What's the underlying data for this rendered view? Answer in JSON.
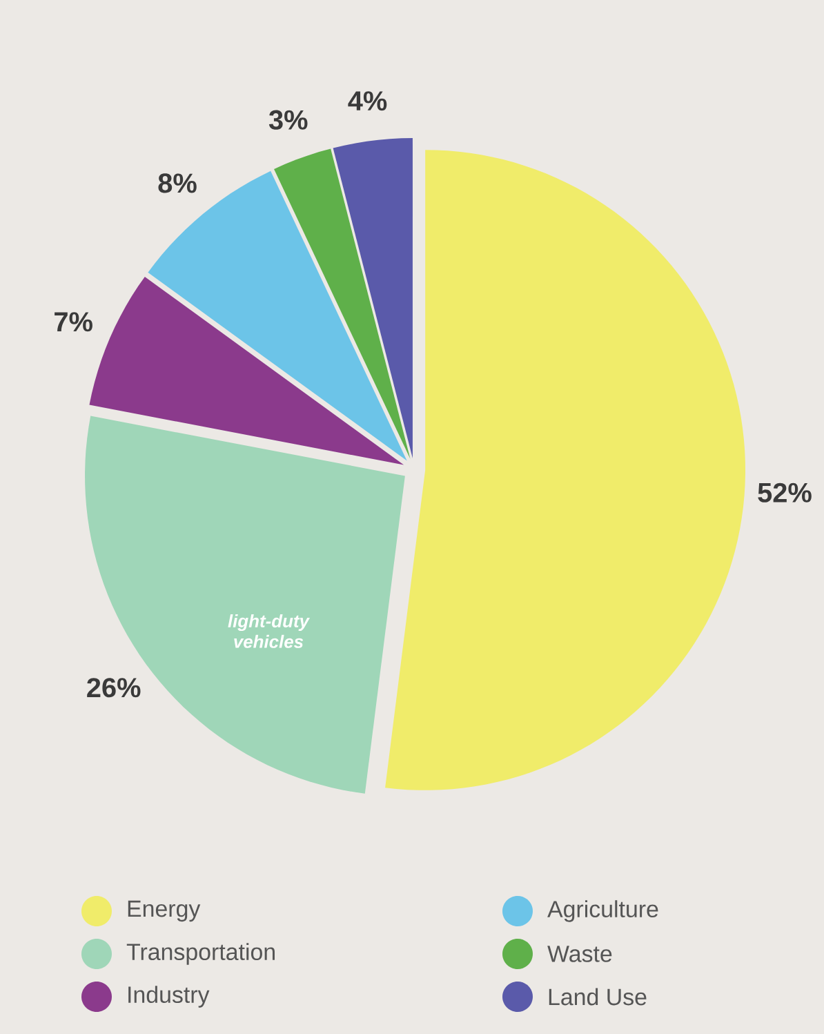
{
  "chart_data": {
    "type": "pie",
    "categories": [
      "Energy",
      "Transportation",
      "Industry",
      "Agriculture",
      "Waste",
      "Land Use"
    ],
    "values": [
      52,
      26,
      7,
      8,
      3,
      4
    ],
    "value_labels": [
      "52%",
      "26%",
      "7%",
      "8%",
      "3%",
      "4%"
    ],
    "colors": [
      "#f0ec6a",
      "#9fd6b8",
      "#8b3a8c",
      "#6cc4e8",
      "#5fb04a",
      "#5a5aaa"
    ],
    "annotations": [
      "light-duty vehicles"
    ],
    "legend": "bottom"
  }
}
